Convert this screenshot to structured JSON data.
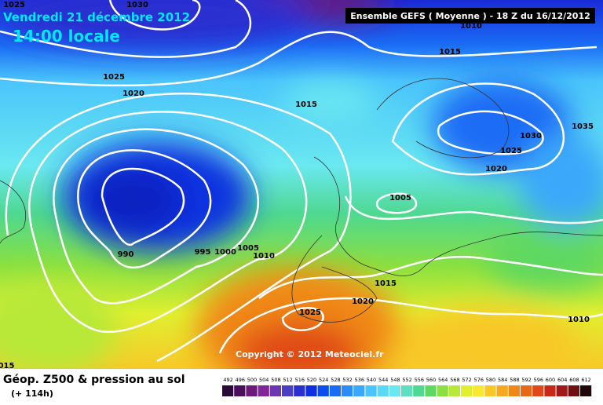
{
  "header": {
    "date": "Vendredi 21 décembre 2012",
    "time": "14:00 locale",
    "model": "Ensemble GEFS ( Moyenne )  -  18 Z du 16/12/2012"
  },
  "isobar_labels": [
    "1025",
    "1030",
    "1010",
    "1015",
    "1025",
    "1020",
    "1015",
    "1035",
    "1030",
    "1025",
    "1020",
    "1005",
    "990",
    "995",
    "1000",
    "1005",
    "1010",
    "1015",
    "1020",
    "1025",
    "1010",
    "015"
  ],
  "copyright": "Copyright © 2012 Meteociel.fr",
  "footer": {
    "title": "Géop. Z500 & pression au sol",
    "lead": "(+ 114h)"
  },
  "colorbar": {
    "labels": [
      "492",
      "496",
      "500",
      "504",
      "508",
      "512",
      "516",
      "520",
      "524",
      "528",
      "532",
      "536",
      "540",
      "544",
      "548",
      "552",
      "556",
      "560",
      "564",
      "568",
      "572",
      "576",
      "580",
      "584",
      "588",
      "592",
      "596",
      "600",
      "604",
      "608",
      "612"
    ],
    "colors": [
      "#2a0a36",
      "#4a0f5a",
      "#6b1a7a",
      "#82249a",
      "#6b36b0",
      "#4a3fc2",
      "#2a2fd0",
      "#1030e0",
      "#0a4cf0",
      "#1a6cf5",
      "#2a8cf8",
      "#3aa8fa",
      "#4ac4fb",
      "#5ad8fa",
      "#6ae8f0",
      "#5ee0c0",
      "#4ed890",
      "#5ed860",
      "#8ae040",
      "#b8e838",
      "#e0f030",
      "#f8e830",
      "#f8c828",
      "#f8a820",
      "#f08818",
      "#e86818",
      "#e04818",
      "#c82818",
      "#a01818",
      "#701010",
      "#200808"
    ]
  }
}
